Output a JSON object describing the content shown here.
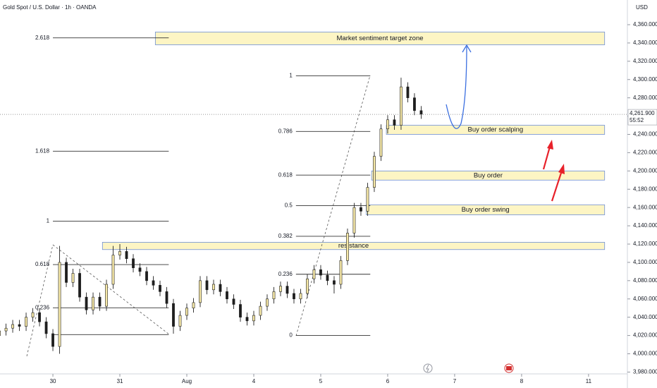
{
  "header": {
    "title": "Gold Spot / U.S. Dollar · 1h · OANDA",
    "currency": "USD"
  },
  "chart_data": {
    "type": "candlestick",
    "x": [
      -0.8,
      -0.7,
      -0.6,
      -0.5,
      -0.4,
      -0.3,
      -0.2,
      -0.1,
      0.0,
      0.1,
      0.2,
      0.3,
      0.4,
      0.5,
      0.6,
      0.7,
      0.8,
      0.9,
      1.0,
      1.1,
      1.2,
      1.3,
      1.4,
      1.5,
      1.6,
      1.7,
      1.8,
      1.9,
      2.0,
      2.1,
      2.2,
      2.3,
      2.4,
      2.5,
      2.6,
      2.7,
      2.8,
      2.9,
      3.0,
      3.1,
      3.2,
      3.3,
      3.4,
      3.5,
      3.6,
      3.7,
      3.8,
      3.9,
      4.0,
      4.1,
      4.2,
      4.3,
      4.4,
      4.5,
      4.6,
      4.7,
      4.8,
      4.9,
      5.0,
      5.1,
      5.2,
      5.3,
      5.4,
      5.5
    ],
    "open": [
      4020,
      4025,
      4028,
      4032,
      4030,
      4040,
      4045,
      4035,
      4022,
      4008,
      4100,
      4078,
      4088,
      4062,
      4048,
      4062,
      4052,
      4076,
      4108,
      4112,
      4104,
      4094,
      4090,
      4080,
      4075,
      4068,
      4055,
      4030,
      4042,
      4050,
      4056,
      4080,
      4070,
      4076,
      4068,
      4060,
      4054,
      4040,
      4036,
      4042,
      4052,
      4060,
      4068,
      4074,
      4066,
      4060,
      4066,
      4082,
      4092,
      4086,
      4080,
      4076,
      4102,
      4132,
      4160,
      4156,
      4182,
      4216,
      4246,
      4256,
      4250,
      4292,
      4280,
      4266
    ],
    "high": [
      4030,
      4033,
      4037,
      4037,
      4045,
      4050,
      4050,
      4040,
      4027,
      4118,
      4105,
      4093,
      4093,
      4067,
      4067,
      4067,
      4081,
      4118,
      4120,
      4117,
      4109,
      4099,
      4095,
      4085,
      4080,
      4073,
      4060,
      4047,
      4055,
      4061,
      4085,
      4085,
      4081,
      4081,
      4073,
      4065,
      4059,
      4045,
      4047,
      4057,
      4065,
      4073,
      4079,
      4079,
      4071,
      4071,
      4087,
      4097,
      4097,
      4091,
      4085,
      4107,
      4137,
      4165,
      4165,
      4187,
      4221,
      4251,
      4261,
      4261,
      4302,
      4297,
      4285,
      4271
    ],
    "low": [
      4015,
      4020,
      4023,
      4025,
      4025,
      4035,
      4030,
      4017,
      4003,
      4000,
      4073,
      4073,
      4057,
      4043,
      4043,
      4047,
      4047,
      4071,
      4103,
      4099,
      4089,
      4085,
      4075,
      4070,
      4063,
      4050,
      4022,
      4025,
      4037,
      4045,
      4051,
      4065,
      4065,
      4063,
      4055,
      4049,
      4035,
      4031,
      4031,
      4037,
      4047,
      4055,
      4063,
      4061,
      4055,
      4055,
      4061,
      4077,
      4081,
      4075,
      4066,
      4071,
      4097,
      4127,
      4151,
      4151,
      4177,
      4211,
      4241,
      4245,
      4245,
      4275,
      4261,
      4257
    ],
    "close": [
      4025,
      4028,
      4032,
      4030,
      4040,
      4045,
      4035,
      4022,
      4008,
      4100,
      4078,
      4088,
      4062,
      4048,
      4062,
      4052,
      4076,
      4108,
      4112,
      4104,
      4094,
      4090,
      4080,
      4075,
      4068,
      4055,
      4030,
      4042,
      4050,
      4056,
      4080,
      4070,
      4076,
      4068,
      4060,
      4054,
      4040,
      4036,
      4042,
      4052,
      4060,
      4068,
      4074,
      4066,
      4060,
      4066,
      4082,
      4092,
      4086,
      4080,
      4076,
      4102,
      4132,
      4160,
      4156,
      4182,
      4216,
      4246,
      4256,
      4250,
      4292,
      4280,
      4266,
      4262
    ],
    "up_color": "#f7e9a8",
    "down_color": "#1e1e1e",
    "xlim": [
      -0.79,
      8.58
    ],
    "ylim": [
      3978,
      4387
    ],
    "xticks": [
      {
        "value": 0,
        "label": "30"
      },
      {
        "value": 1,
        "label": "31"
      },
      {
        "value": 2,
        "label": "Aug"
      },
      {
        "value": 3,
        "label": "4"
      },
      {
        "value": 4,
        "label": "5"
      },
      {
        "value": 5,
        "label": "6"
      },
      {
        "value": 6,
        "label": "7"
      },
      {
        "value": 7,
        "label": "8"
      },
      {
        "value": 8,
        "label": "11"
      }
    ],
    "yticks": [
      {
        "value": 3980,
        "label": "3,980.000"
      },
      {
        "value": 4000,
        "label": "4,000.000"
      },
      {
        "value": 4020,
        "label": "4,020.000"
      },
      {
        "value": 4040,
        "label": "4,040.000"
      },
      {
        "value": 4060,
        "label": "4,060.000"
      },
      {
        "value": 4080,
        "label": "4,080.000"
      },
      {
        "value": 4100,
        "label": "4,100.000"
      },
      {
        "value": 4120,
        "label": "4,120.000"
      },
      {
        "value": 4140,
        "label": "4,140.000"
      },
      {
        "value": 4160,
        "label": "4,160.000"
      },
      {
        "value": 4180,
        "label": "4,180.000"
      },
      {
        "value": 4200,
        "label": "4,200.000"
      },
      {
        "value": 4220,
        "label": "4,220.000"
      },
      {
        "value": 4240,
        "label": "4,240.000"
      },
      {
        "value": 4260,
        "label": "4,260.000"
      },
      {
        "value": 4280,
        "label": "4,280.000"
      },
      {
        "value": 4300,
        "label": "4,300.000"
      },
      {
        "value": 4320,
        "label": "4,320.000"
      },
      {
        "value": 4340,
        "label": "4,340.000"
      },
      {
        "value": 4360,
        "label": "4,360.000"
      }
    ],
    "zones": [
      {
        "label": "Market sentiment target zone",
        "top": 4352,
        "bottom": 4338,
        "x0": 1.53,
        "x1": 8.24
      },
      {
        "label": "Buy order scalping",
        "top": 4250,
        "bottom": 4240,
        "x0": 4.98,
        "x1": 8.24
      },
      {
        "label": "Buy order",
        "top": 4200,
        "bottom": 4190,
        "x0": 4.76,
        "x1": 8.24
      },
      {
        "label": "Buy order swing",
        "top": 4163,
        "bottom": 4152,
        "x0": 4.68,
        "x1": 8.24
      },
      {
        "label": "resistance",
        "top": 4122,
        "bottom": 4114,
        "x0": 0.74,
        "x1": 8.24
      }
    ],
    "fib_left": {
      "x0": 0.0,
      "x1": 1.73,
      "base_price": 4021,
      "levels": [
        {
          "ratio": 2.618,
          "price": 4345.6
        },
        {
          "ratio": 1.618,
          "price": 4221.6
        },
        {
          "ratio": 1,
          "price": 4145
        },
        {
          "ratio": 0.618,
          "price": 4097.6
        },
        {
          "ratio": 0.236,
          "price": 4050.3
        }
      ]
    },
    "fib_right": {
      "x0": 3.63,
      "x1": 4.74,
      "levels": [
        {
          "ratio": 1,
          "price": 4304
        },
        {
          "ratio": 0.786,
          "price": 4243.2
        },
        {
          "ratio": 0.618,
          "price": 4195.5
        },
        {
          "ratio": 0.5,
          "price": 4162
        },
        {
          "ratio": 0.382,
          "price": 4128.5
        },
        {
          "ratio": 0.236,
          "price": 4087
        },
        {
          "ratio": 0,
          "price": 4020
        }
      ]
    },
    "last_price": {
      "value": 4261.9,
      "label": "4,261.900"
    },
    "countdown": "55:52"
  }
}
